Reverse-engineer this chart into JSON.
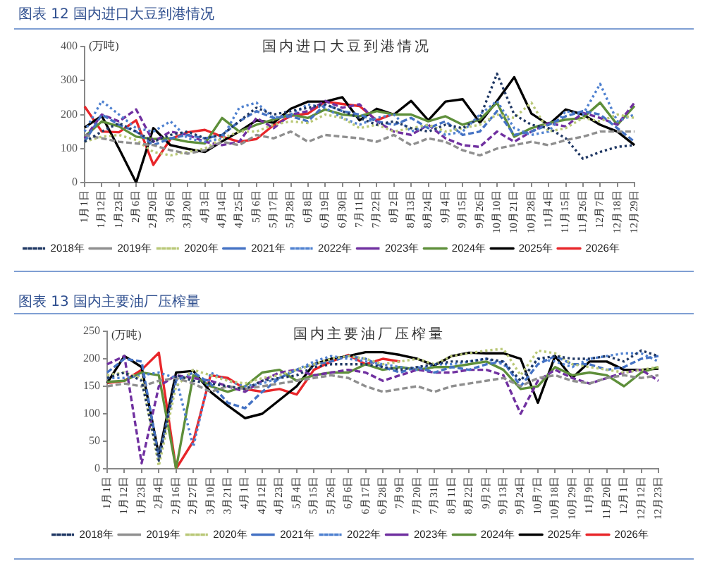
{
  "chart_data": [
    {
      "type": "line",
      "title": "图表 12 国内进口大豆到港情况",
      "subtitle": "国内进口大豆到港情况",
      "ylabel": "(万吨)",
      "legend": "bottom",
      "ylim": [
        0,
        400
      ],
      "yticks": [
        0,
        100,
        200,
        300,
        400
      ],
      "categories": [
        "1月1日",
        "1月12日",
        "1月23日",
        "2月6日",
        "2月20日",
        "3月6日",
        "3月20日",
        "4月3日",
        "4月14日",
        "4月25日",
        "5月6日",
        "5月17日",
        "5月28日",
        "6月8日",
        "6月19日",
        "6月30日",
        "7月11日",
        "7月22日",
        "8月2日",
        "8月13日",
        "8月24日",
        "9月4日",
        "9月15日",
        "9月26日",
        "10月10日",
        "10月21日",
        "10月28日",
        "11月4日",
        "11月15日",
        "11月26日",
        "12月7日",
        "12月18日",
        "12月29日"
      ],
      "series": [
        {
          "name": "2018年",
          "color": "#203864",
          "line_style": "dotted",
          "values": [
            120,
            150,
            175,
            150,
            120,
            140,
            150,
            130,
            140,
            180,
            220,
            200,
            210,
            220,
            230,
            210,
            190,
            170,
            180,
            160,
            150,
            170,
            160,
            190,
            320,
            200,
            170,
            160,
            130,
            70,
            90,
            105,
            110
          ]
        },
        {
          "name": "2019年",
          "color": "#8f8f8f",
          "line_style": "dashed",
          "values": [
            140,
            130,
            120,
            115,
            110,
            95,
            85,
            95,
            120,
            110,
            140,
            130,
            150,
            120,
            140,
            135,
            130,
            120,
            140,
            110,
            130,
            120,
            95,
            80,
            100,
            110,
            120,
            110,
            125,
            135,
            150,
            150,
            150
          ]
        },
        {
          "name": "2020年",
          "color": "#b9c877",
          "line_style": "dotted",
          "values": [
            120,
            135,
            140,
            125,
            90,
            80,
            90,
            100,
            130,
            150,
            150,
            170,
            180,
            175,
            200,
            190,
            160,
            170,
            150,
            160,
            170,
            150,
            160,
            170,
            200,
            190,
            235,
            150,
            160,
            190,
            180,
            200,
            190
          ]
        },
        {
          "name": "2021年",
          "color": "#4472c4",
          "line_style": "dashed",
          "values": [
            120,
            200,
            170,
            150,
            110,
            130,
            140,
            130,
            140,
            180,
            210,
            190,
            195,
            180,
            230,
            210,
            200,
            180,
            170,
            190,
            160,
            180,
            140,
            150,
            210,
            140,
            150,
            170,
            195,
            210,
            200,
            160,
            120
          ]
        },
        {
          "name": "2022年",
          "color": "#4f81d0",
          "line_style": "dotted",
          "values": [
            150,
            240,
            200,
            160,
            150,
            180,
            130,
            120,
            130,
            220,
            235,
            190,
            200,
            230,
            220,
            190,
            170,
            190,
            200,
            150,
            170,
            140,
            150,
            200,
            240,
            160,
            140,
            150,
            210,
            200,
            290,
            180,
            200
          ]
        },
        {
          "name": "2023年",
          "color": "#7030a0",
          "line_style": "dashed",
          "values": [
            130,
            200,
            180,
            215,
            120,
            150,
            140,
            120,
            110,
            120,
            190,
            160,
            200,
            210,
            240,
            220,
            230,
            180,
            150,
            140,
            170,
            130,
            110,
            105,
            150,
            120,
            150,
            175,
            165,
            205,
            190,
            170,
            235
          ]
        },
        {
          "name": "2024年",
          "color": "#5e8f3a",
          "line_style": "solid",
          "values": [
            135,
            180,
            165,
            135,
            128,
            130,
            120,
            115,
            190,
            150,
            170,
            185,
            200,
            190,
            215,
            200,
            195,
            210,
            200,
            200,
            180,
            195,
            170,
            185,
            235,
            135,
            160,
            175,
            185,
            190,
            235,
            170,
            225
          ]
        },
        {
          "name": "2025年",
          "color": "#000000",
          "line_style": "solid",
          "values": [
            162,
            196,
            100,
            0,
            160,
            110,
            99,
            90,
            121,
            150,
            183,
            176,
            217,
            238,
            238,
            251,
            183,
            217,
            200,
            240,
            183,
            238,
            245,
            176,
            240,
            310,
            203,
            170,
            215,
            200,
            170,
            150,
            110
          ]
        },
        {
          "name": "2026年",
          "color": "#e8262a",
          "line_style": "solid",
          "values": [
            224,
            150,
            148,
            183,
            52,
            128,
            148,
            155,
            135,
            120,
            128,
            169,
            196,
            203,
            238,
            231,
            225,
            183,
            203,
            null,
            null,
            null,
            null,
            null,
            null,
            null,
            null,
            null,
            null,
            null,
            null,
            null,
            null
          ]
        }
      ]
    },
    {
      "type": "line",
      "title": "图表 13 国内主要油厂压榨量",
      "subtitle": "国内主要油厂压榨量",
      "ylabel": "(万吨)",
      "legend": "bottom",
      "ylim": [
        0,
        250
      ],
      "yticks": [
        0,
        50,
        100,
        150,
        200,
        250
      ],
      "categories": [
        "1月1日",
        "1月12日",
        "1月23日",
        "2月4日",
        "2月16日",
        "2月27日",
        "3月10日",
        "3月21日",
        "4月1日",
        "4月12日",
        "4月23日",
        "5月4日",
        "5月15日",
        "5月26日",
        "6月6日",
        "6月17日",
        "6月28日",
        "7月9日",
        "7月20日",
        "7月31日",
        "8月11日",
        "8月22日",
        "9月2日",
        "9月13日",
        "9月24日",
        "10月7日",
        "10月18日",
        "10月29日",
        "11月9日",
        "11月20日",
        "12月1日",
        "12月12日",
        "12月23日"
      ],
      "series": [
        {
          "name": "2018年",
          "color": "#203864",
          "line_style": "dotted",
          "values": [
            165,
            175,
            160,
            15,
            170,
            160,
            155,
            150,
            145,
            160,
            165,
            170,
            185,
            190,
            190,
            190,
            185,
            180,
            185,
            190,
            195,
            195,
            200,
            195,
            160,
            200,
            205,
            200,
            200,
            205,
            195,
            215,
            205
          ]
        },
        {
          "name": "2019年",
          "color": "#8f8f8f",
          "line_style": "dashed",
          "values": [
            150,
            155,
            150,
            160,
            165,
            155,
            140,
            150,
            145,
            150,
            155,
            160,
            165,
            170,
            165,
            150,
            140,
            145,
            150,
            140,
            150,
            155,
            160,
            165,
            150,
            165,
            170,
            160,
            155,
            165,
            170,
            165,
            170
          ]
        },
        {
          "name": "2020年",
          "color": "#b9c877",
          "line_style": "dotted",
          "values": [
            170,
            175,
            165,
            5,
            150,
            180,
            170,
            160,
            155,
            165,
            170,
            180,
            190,
            200,
            205,
            200,
            190,
            195,
            200,
            190,
            205,
            210,
            215,
            218,
            170,
            215,
            210,
            190,
            185,
            180,
            175,
            180,
            185
          ]
        },
        {
          "name": "2021年",
          "color": "#4472c4",
          "line_style": "dashed",
          "values": [
            175,
            200,
            195,
            20,
            160,
            175,
            155,
            120,
            110,
            140,
            165,
            180,
            190,
            195,
            205,
            200,
            185,
            175,
            185,
            175,
            185,
            180,
            190,
            195,
            150,
            190,
            205,
            190,
            190,
            180,
            185,
            200,
            205
          ]
        },
        {
          "name": "2022年",
          "color": "#4f81d0",
          "line_style": "dotted",
          "values": [
            165,
            165,
            170,
            175,
            165,
            40,
            175,
            160,
            150,
            155,
            165,
            180,
            195,
            205,
            200,
            195,
            190,
            185,
            180,
            190,
            190,
            195,
            200,
            190,
            160,
            200,
            195,
            185,
            200,
            205,
            210,
            210,
            195
          ]
        },
        {
          "name": "2023年",
          "color": "#7030a0",
          "line_style": "dashed",
          "values": [
            190,
            205,
            10,
            150,
            170,
            165,
            160,
            150,
            140,
            160,
            175,
            180,
            170,
            175,
            180,
            175,
            160,
            170,
            180,
            175,
            175,
            180,
            180,
            170,
            100,
            160,
            180,
            165,
            155,
            165,
            175,
            180,
            160
          ]
        },
        {
          "name": "2024年",
          "color": "#5e8f3a",
          "line_style": "solid",
          "values": [
            158,
            160,
            175,
            170,
            0,
            170,
            150,
            140,
            150,
            175,
            180,
            160,
            170,
            175,
            175,
            190,
            180,
            185,
            180,
            185,
            185,
            190,
            195,
            180,
            145,
            150,
            185,
            170,
            175,
            170,
            150,
            175,
            185
          ]
        },
        {
          "name": "2025年",
          "color": "#000000",
          "line_style": "solid",
          "values": [
            156,
            205,
            185,
            25,
            175,
            178,
            140,
            115,
            92,
            100,
            125,
            150,
            190,
            200,
            205,
            212,
            212,
            207,
            200,
            188,
            205,
            211,
            210,
            210,
            200,
            120,
            205,
            165,
            195,
            195,
            180,
            180,
            182
          ]
        },
        {
          "name": "2026年",
          "color": "#e8262a",
          "line_style": "solid",
          "values": [
            156,
            160,
            180,
            211,
            0,
            50,
            170,
            165,
            145,
            140,
            145,
            135,
            180,
            195,
            207,
            190,
            200,
            195,
            null,
            null,
            null,
            null,
            null,
            null,
            null,
            null,
            null,
            null,
            null,
            null,
            null,
            null,
            null
          ]
        }
      ]
    }
  ]
}
